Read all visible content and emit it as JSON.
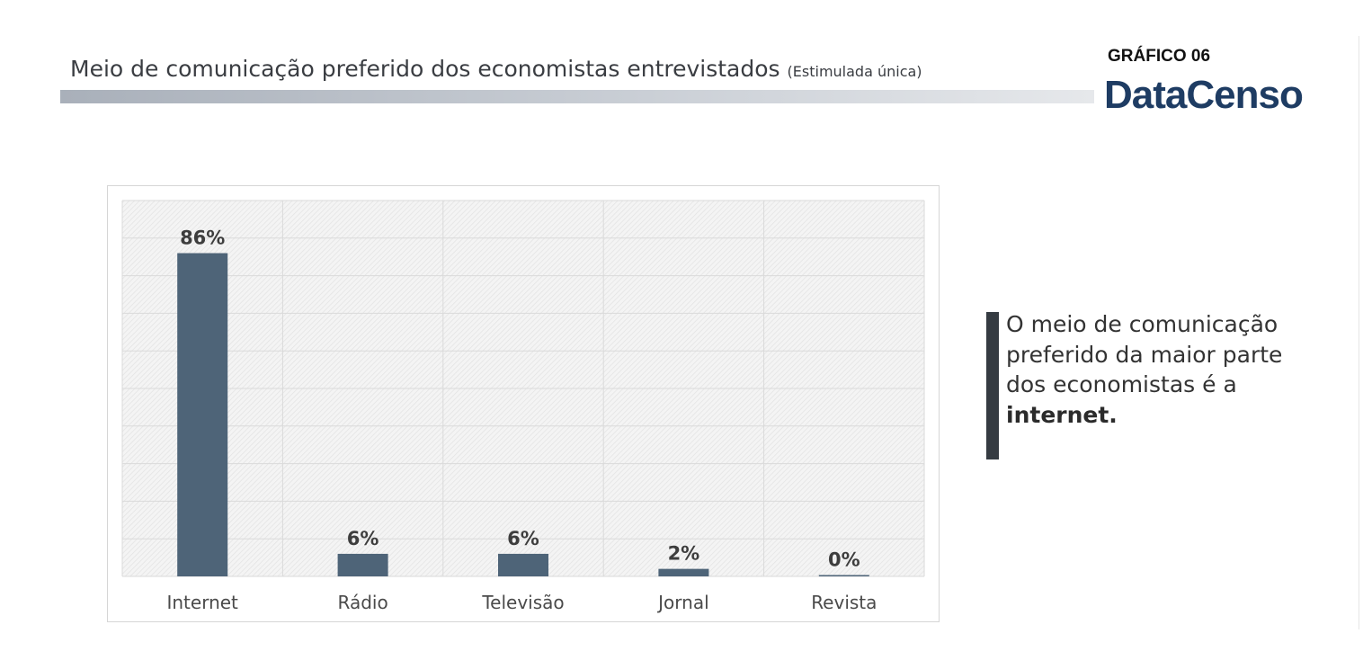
{
  "header": {
    "title": "Meio de comunicação preferido dos economistas entrevistados",
    "subtitle": "(Estimulada única)",
    "chart_number": "GRÁFICO 06",
    "logo_text": "DataCenso",
    "logo_color": "#1e3c63"
  },
  "chart_data": {
    "type": "bar",
    "categories": [
      "Internet",
      "Rádio",
      "Televisão",
      "Jornal",
      "Revista"
    ],
    "values": [
      86,
      6,
      6,
      2,
      0
    ],
    "value_labels": [
      "86%",
      "6%",
      "6%",
      "2%",
      "0%"
    ],
    "ylim": [
      0,
      100
    ],
    "grid": true,
    "bar_color": "#4e6478"
  },
  "callout": {
    "text_before": "O meio de comunicação preferido da maior parte dos economistas é a ",
    "text_bold": "internet."
  }
}
